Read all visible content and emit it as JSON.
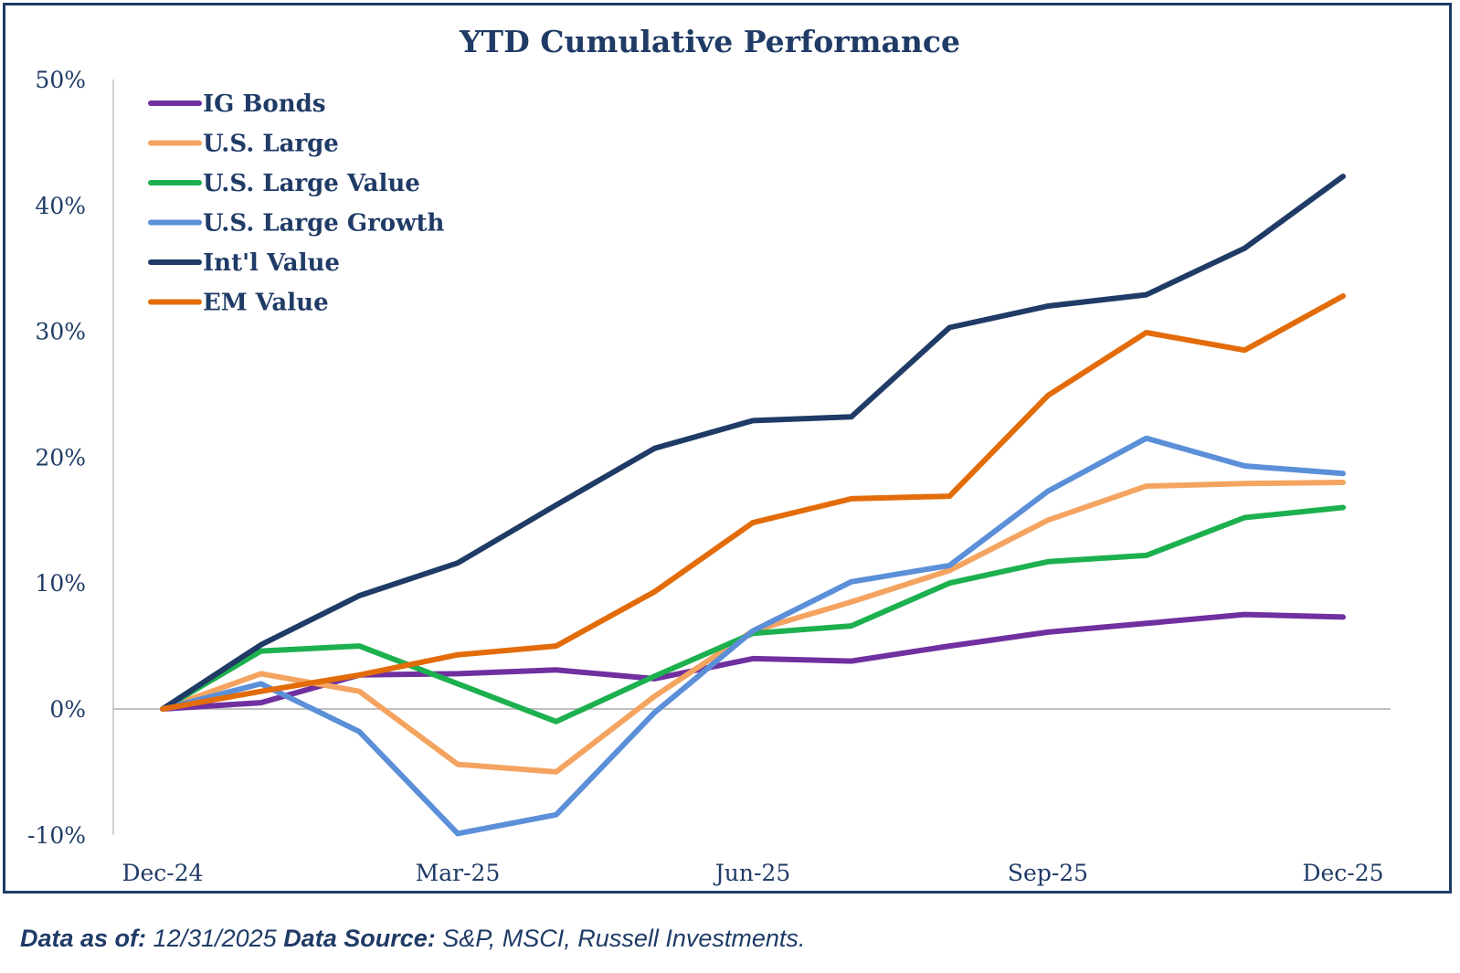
{
  "chart_data": {
    "type": "line",
    "title": "YTD Cumulative Performance",
    "x": [
      "Dec-24",
      "Jan-25",
      "Feb-25",
      "Mar-25",
      "Apr-25",
      "May-25",
      "Jun-25",
      "Jul-25",
      "Aug-25",
      "Sep-25",
      "Oct-25",
      "Nov-25",
      "Dec-25"
    ],
    "xtick_labels": [
      "Dec-24",
      "Mar-25",
      "Jun-25",
      "Sep-25",
      "Dec-25"
    ],
    "xtick_index": [
      0,
      3,
      6,
      9,
      12
    ],
    "yticks": [
      -10,
      0,
      10,
      20,
      30,
      40,
      50
    ],
    "ytick_labels": [
      "-10%",
      "0%",
      "10%",
      "20%",
      "30%",
      "40%",
      "50%"
    ],
    "ylim": [
      -10,
      50
    ],
    "grid": false,
    "legend_position": "top-left",
    "series": [
      {
        "name": "IG Bonds",
        "color": "#7030a0",
        "values": [
          0,
          0.5,
          2.7,
          2.8,
          3.1,
          2.4,
          4.0,
          3.8,
          5.0,
          6.1,
          6.8,
          7.5,
          7.3
        ]
      },
      {
        "name": "U.S. Large",
        "color": "#f4a460",
        "values": [
          0,
          2.8,
          1.4,
          -4.4,
          -5.0,
          1.0,
          6.2,
          8.5,
          11.0,
          15.0,
          17.7,
          17.9,
          18.0
        ]
      },
      {
        "name": "U.S. Large Value",
        "color": "#1db04f",
        "values": [
          0,
          4.6,
          5.0,
          2.0,
          -1.0,
          2.6,
          6.0,
          6.6,
          10.0,
          11.7,
          12.2,
          15.2,
          16.0
        ]
      },
      {
        "name": "U.S. Large Growth",
        "color": "#5b8fd8",
        "values": [
          0,
          2.0,
          -1.8,
          -9.9,
          -8.4,
          -0.3,
          6.2,
          10.1,
          11.4,
          17.3,
          21.5,
          19.3,
          18.7
        ]
      },
      {
        "name": "Int'l Value",
        "color": "#1f3b66",
        "values": [
          0,
          5.1,
          9.0,
          11.6,
          16.2,
          20.7,
          22.9,
          23.2,
          30.3,
          32.0,
          32.9,
          36.6,
          42.3
        ]
      },
      {
        "name": "EM Value",
        "color": "#e36c0a",
        "values": [
          0,
          1.4,
          2.7,
          4.3,
          5.0,
          9.3,
          14.8,
          16.7,
          16.9,
          24.9,
          29.9,
          28.5,
          32.8
        ]
      }
    ]
  },
  "footer": {
    "label1": "Data as of:",
    "value1": " 12/31/2025 ",
    "label2": "Data Source:",
    "value2": " S&P, MSCI, Russell Investments."
  }
}
